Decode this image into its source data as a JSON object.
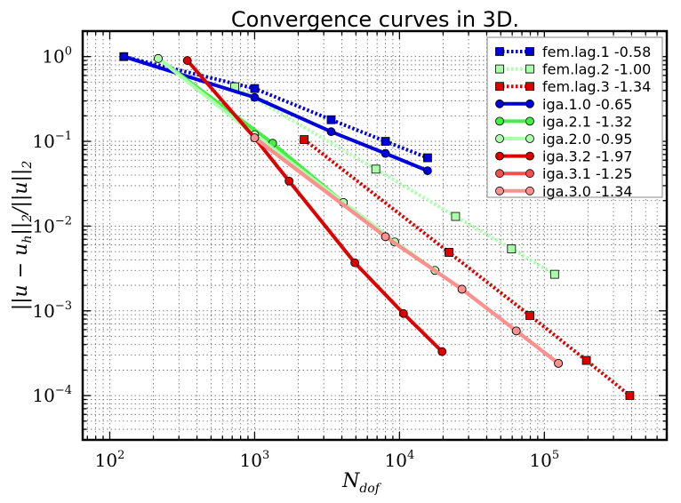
{
  "colors": {
    "blue": "#0000dd",
    "green": "#44ee44",
    "light_green": "#aaffaa",
    "red": "#dd0000",
    "light_red": "#f05050",
    "lighter_red": "#ff9090",
    "grid": "#666666"
  },
  "chart_data": {
    "type": "line",
    "title": "Convergence curves in 3D.",
    "xlabel": "N_dof",
    "ylabel": "||u - u_h||_2/||u||_2",
    "xscale": "log",
    "yscale": "log",
    "xlim": [
      65,
      700000
    ],
    "ylim": [
      3e-05,
      2.0
    ],
    "grid": true,
    "legend_position": "top-right",
    "x_ticks": [
      {
        "value": 100,
        "base": "10",
        "exp": "2"
      },
      {
        "value": 1000,
        "base": "10",
        "exp": "3"
      },
      {
        "value": 10000,
        "base": "10",
        "exp": "4"
      },
      {
        "value": 100000,
        "base": "10",
        "exp": "5"
      }
    ],
    "y_ticks": [
      {
        "value": 1,
        "base": "10",
        "exp": "0"
      },
      {
        "value": 0.1,
        "base": "10",
        "exp": "−1"
      },
      {
        "value": 0.01,
        "base": "10",
        "exp": "−2"
      },
      {
        "value": 0.001,
        "base": "10",
        "exp": "−3"
      },
      {
        "value": 0.0001,
        "base": "10",
        "exp": "−4"
      }
    ],
    "series": [
      {
        "name": "fem.lag.1 -0.58",
        "color": "blue",
        "marker": "square",
        "style": "dotted",
        "x": [
          125,
          1000,
          3375,
          8000,
          15625
        ],
        "y": [
          1.0,
          0.42,
          0.18,
          0.1,
          0.064
        ]
      },
      {
        "name": "fem.lag.2 -1.00",
        "color": "light_green",
        "marker": "square",
        "style": "dotted",
        "x": [
          729,
          6859,
          24389,
          59319,
          117649
        ],
        "y": [
          0.44,
          0.047,
          0.013,
          0.0054,
          0.0027
        ]
      },
      {
        "name": "fem.lag.3 -1.34",
        "color": "red",
        "marker": "square",
        "style": "dotted",
        "x": [
          2197,
          21952,
          79507,
          195112,
          389017
        ],
        "y": [
          0.105,
          0.0049,
          0.00088,
          0.00026,
          0.0001
        ]
      },
      {
        "name": "iga.1.0 -0.65",
        "color": "blue",
        "marker": "circle",
        "style": "solid",
        "x": [
          125,
          1000,
          3375,
          8000,
          15625
        ],
        "y": [
          1.0,
          0.33,
          0.13,
          0.072,
          0.045
        ]
      },
      {
        "name": "iga.2.1 -1.32",
        "color": "green",
        "marker": "circle",
        "style": "solid",
        "x": [
          216,
          1331,
          4096,
          9261,
          17576
        ],
        "y": [
          0.95,
          0.095,
          0.019,
          0.0065,
          0.003
        ]
      },
      {
        "name": "iga.2.0 -0.95",
        "color": "light_green",
        "marker": "circle",
        "style": "solid",
        "x": [
          216,
          1000,
          4096,
          9261,
          17576
        ],
        "y": [
          0.95,
          0.12,
          0.019,
          0.0065,
          0.003
        ]
      },
      {
        "name": "iga.3.2 -1.97",
        "color": "red",
        "marker": "circle",
        "style": "solid",
        "x": [
          343,
          1000,
          1728,
          4913,
          10648,
          19683
        ],
        "y": [
          0.9,
          0.11,
          0.034,
          0.0037,
          0.00093,
          0.00033
        ]
      },
      {
        "name": "iga.3.1 -1.25",
        "color": "light_red",
        "marker": "circle",
        "style": "solid",
        "x": [
          1000,
          8000,
          27000,
          64000,
          125000
        ],
        "y": [
          0.11,
          0.0075,
          0.0018,
          0.00058,
          0.00024
        ]
      },
      {
        "name": "iga.3.0 -1.34",
        "color": "lighter_red",
        "marker": "circle",
        "style": "solid",
        "x": [
          1000,
          8000,
          27000,
          64000,
          125000
        ],
        "y": [
          0.11,
          0.0075,
          0.0018,
          0.00058,
          0.00024
        ]
      }
    ]
  }
}
